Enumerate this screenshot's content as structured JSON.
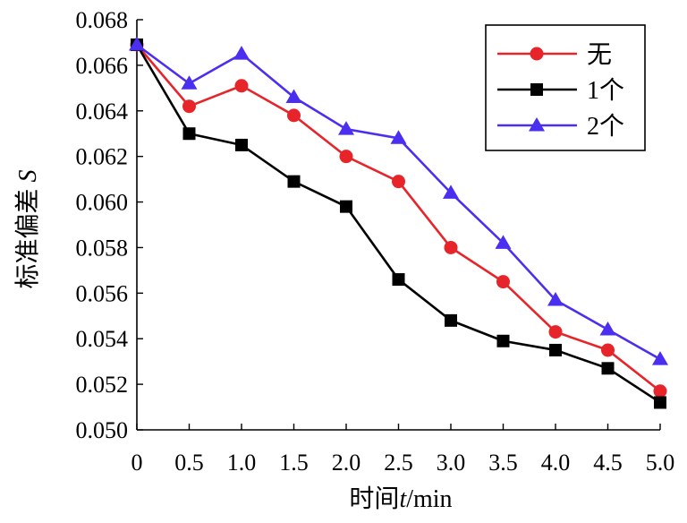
{
  "chart_data": {
    "type": "line",
    "xlabel": "时间t/min",
    "ylabel": "标准偏差S",
    "xlim": [
      0,
      5.0
    ],
    "ylim": [
      0.05,
      0.068
    ],
    "x_ticks": [
      "0",
      "0.5",
      "1.0",
      "1.5",
      "2.0",
      "2.5",
      "3.0",
      "3.5",
      "4.0",
      "4.5",
      "5.0"
    ],
    "y_ticks": [
      "0.050",
      "0.052",
      "0.054",
      "0.056",
      "0.058",
      "0.060",
      "0.062",
      "0.064",
      "0.066",
      "0.068"
    ],
    "x": [
      0,
      0.5,
      1.0,
      1.5,
      2.0,
      2.5,
      3.0,
      3.5,
      4.0,
      4.5,
      5.0
    ],
    "legend_position": "top-right",
    "grid": false,
    "series": [
      {
        "name": "无",
        "color": "#e8242b",
        "marker": "circle",
        "values": [
          0.0669,
          0.0642,
          0.0651,
          0.0638,
          0.062,
          0.0609,
          0.058,
          0.0565,
          0.0543,
          0.0535,
          0.0517
        ]
      },
      {
        "name": "1个",
        "color": "#000000",
        "marker": "square",
        "values": [
          0.0669,
          0.063,
          0.0625,
          0.0609,
          0.0598,
          0.0566,
          0.0548,
          0.0539,
          0.0535,
          0.0527,
          0.0512
        ]
      },
      {
        "name": "2个",
        "color": "#4b2ff0",
        "marker": "triangle",
        "values": [
          0.0669,
          0.0652,
          0.0665,
          0.0646,
          0.0632,
          0.0628,
          0.0604,
          0.0582,
          0.0557,
          0.0544,
          0.0531
        ]
      }
    ]
  }
}
